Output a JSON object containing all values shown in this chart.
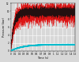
{
  "xlabel": "Time (s)",
  "ylabel": "Pressure (bar)",
  "xlim": [
    0,
    1.5
  ],
  "ylim": [
    0,
    12
  ],
  "ytick_labels": [
    "0",
    "2",
    "4",
    "6",
    "8",
    "10",
    "12"
  ],
  "yticks": [
    0,
    2,
    4,
    6,
    8,
    10,
    12
  ],
  "xticks": [
    0,
    0.1,
    0.2,
    0.3,
    0.4,
    0.5,
    0.6,
    0.7,
    0.8,
    0.9,
    1.0,
    1.1,
    1.2,
    1.3,
    1.4,
    1.5
  ],
  "xtick_labels": [
    "0",
    "0.1",
    "0.2",
    "0.3",
    "0.4",
    "0.5",
    "0.6",
    "0.7",
    "0.8",
    "0.9",
    "1",
    "1.1",
    "1.2",
    "1.3",
    "1.4",
    "1.5"
  ],
  "bg_color": "#d8d8d8",
  "grid_color": "#ffffff",
  "black_color": "#101010",
  "red_color": "#dd0000",
  "cyan_color": "#00bbcc",
  "rise_tau": 0.07,
  "plateau_black": 9.8,
  "plateau_red": 9.5,
  "plateau_cyan": 1.6,
  "noise_black_plateau": 0.55,
  "noise_red_plateau": 1.2,
  "noise_red_rise": 0.6,
  "noise_cyan": 0.05,
  "seed": 7,
  "n_points": 4000
}
